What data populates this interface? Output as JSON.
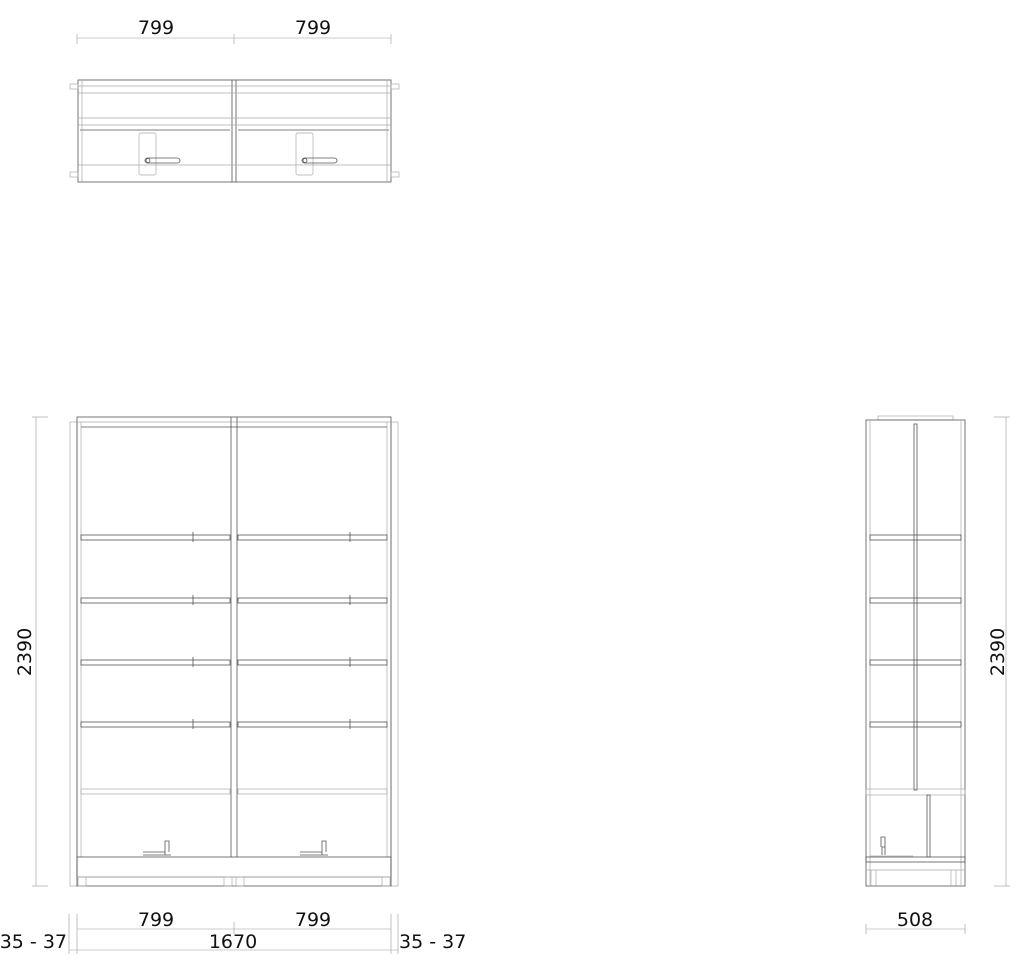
{
  "dimensions": {
    "plan_width_left": "799",
    "plan_width_right": "799",
    "front_height": "2390",
    "side_height": "2390",
    "front_bay_left": "799",
    "front_bay_right": "799",
    "front_total_width": "1670",
    "side_gap_left": "35 - 37",
    "side_gap_right": "35 - 37",
    "side_depth": "508"
  }
}
